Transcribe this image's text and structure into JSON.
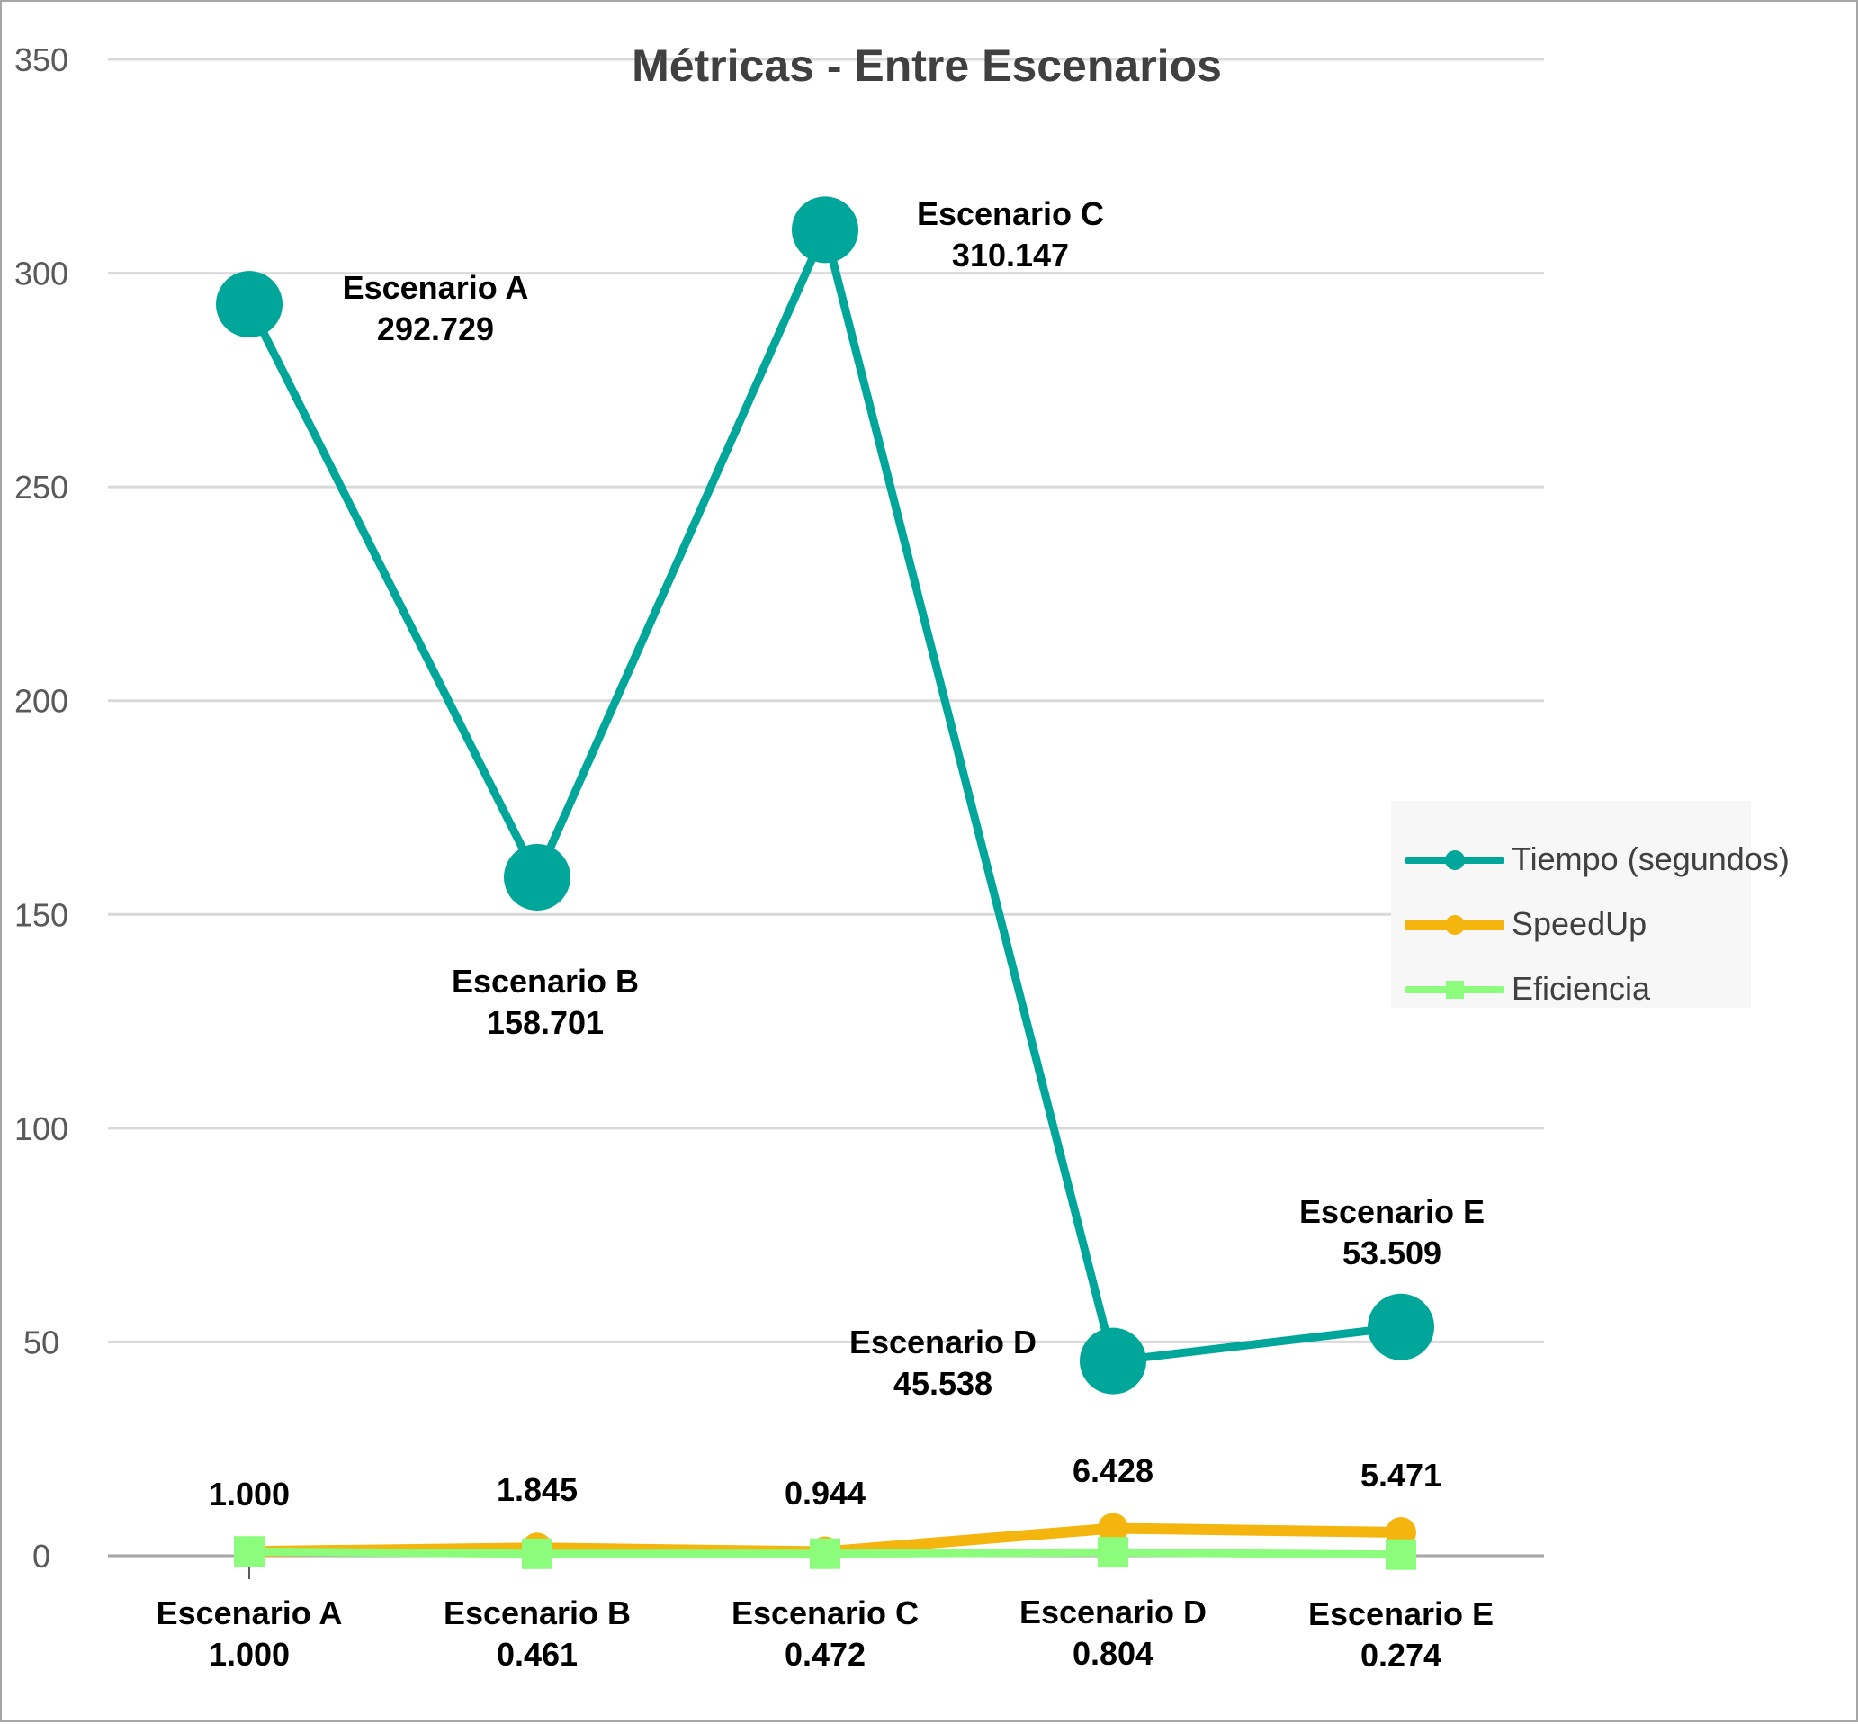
{
  "chart_data": {
    "type": "line",
    "title": "Métricas - Entre Escenarios",
    "categories": [
      "Escenario A",
      "Escenario B",
      "Escenario C",
      "Escenario D",
      "Escenario E"
    ],
    "ylim": [
      0,
      350
    ],
    "yticks": [
      "0",
      "50",
      "100",
      "150",
      "200",
      "250",
      "300",
      "350"
    ],
    "grid": true,
    "legend_position": "right",
    "series": [
      {
        "name": "Tiempo (segundos)",
        "color": "#00a69a",
        "marker": "circle",
        "values": [
          292.729,
          158.701,
          310.147,
          45.538,
          53.509
        ],
        "labels": [
          "292.729",
          "158.701",
          "310.147",
          "45.538",
          "53.509"
        ]
      },
      {
        "name": "SpeedUp",
        "color": "#f5b50f",
        "marker": "circle",
        "values": [
          1.0,
          1.845,
          0.944,
          6.428,
          5.471
        ],
        "labels": [
          "1.000",
          "1.845",
          "0.944",
          "6.428",
          "5.471"
        ]
      },
      {
        "name": "Eficiencia",
        "color": "#8cfc7c",
        "marker": "square",
        "values": [
          1.0,
          0.461,
          0.472,
          0.804,
          0.274
        ],
        "labels": [
          "1.000",
          "0.461",
          "0.472",
          "0.804",
          "0.274"
        ]
      }
    ]
  }
}
